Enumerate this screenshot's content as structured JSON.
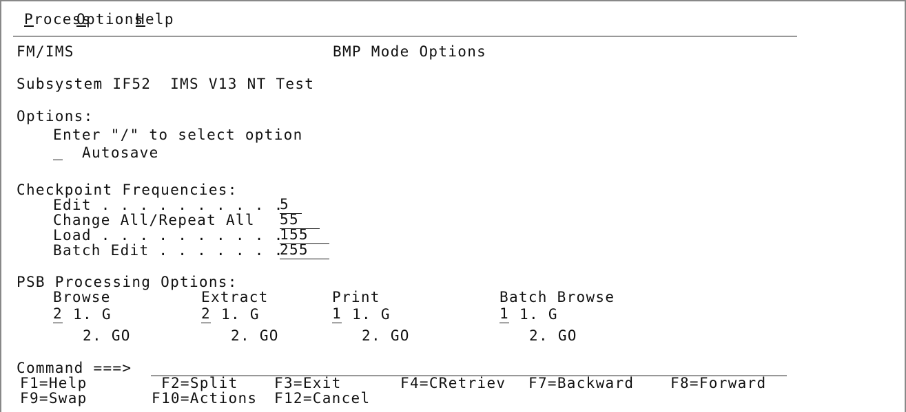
{
  "menu": [
    "Process",
    "Options",
    "Help"
  ],
  "header": {
    "product": "FM/IMS",
    "title": "BMP Mode Options"
  },
  "subsystem": "Subsystem IF52  IMS V13 NT Test",
  "options": {
    "label": "Options:",
    "instruction": "Enter \"/\" to select option",
    "items": [
      "Autosave"
    ]
  },
  "checkpoint": {
    "label": "Checkpoint Frequencies:",
    "fields": [
      {
        "label": "Edit . . . . . . . . . .",
        "value": "5"
      },
      {
        "label": "Change All/Repeat All",
        "value": "55"
      },
      {
        "label": "Load . . . . . . . . . .",
        "value": "155"
      },
      {
        "label": "Batch Edit . . . . . . .",
        "value": "255"
      }
    ]
  },
  "psb": {
    "label": "PSB Processing Options:",
    "choices": [
      "1. G",
      "2. GO"
    ],
    "columns": [
      {
        "name": "Browse",
        "value": "2"
      },
      {
        "name": "Extract",
        "value": "2"
      },
      {
        "name": "Print",
        "value": "1"
      },
      {
        "name": "Batch Browse",
        "value": "1"
      }
    ]
  },
  "command": {
    "label": "Command ===>"
  },
  "fkeys": [
    [
      "F1=Help",
      "F2=Split",
      "F3=Exit",
      "F4=CRetriev",
      "F7=Backward",
      "F8=Forward"
    ],
    [
      "F9=Swap",
      "F10=Actions",
      "F12=Cancel"
    ]
  ]
}
